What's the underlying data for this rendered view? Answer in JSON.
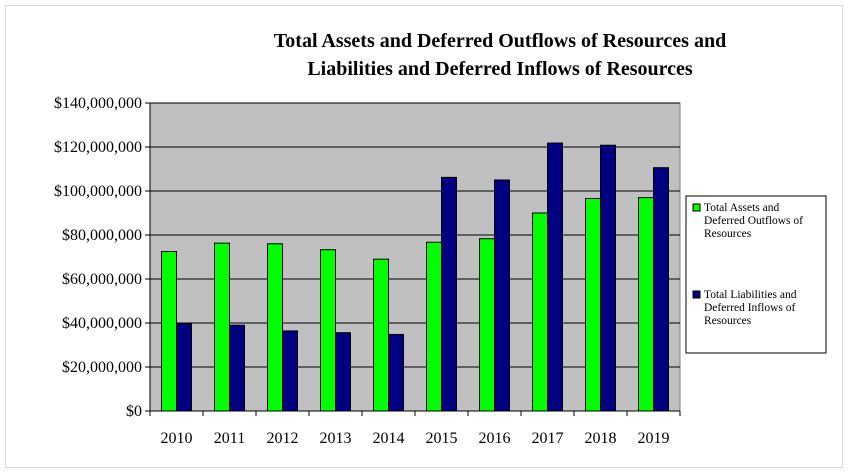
{
  "chart_data": {
    "type": "bar",
    "title_lines": [
      "Total Assets and Deferred Outflows of Resources and",
      "Liabilities and Deferred Inflows of Resources"
    ],
    "xlabel": "",
    "ylabel": "",
    "categories": [
      "2010",
      "2011",
      "2012",
      "2013",
      "2014",
      "2015",
      "2016",
      "2017",
      "2018",
      "2019"
    ],
    "y_ticks": [
      "$0",
      "$20,000,000",
      "$40,000,000",
      "$60,000,000",
      "$80,000,000",
      "$100,000,000",
      "$120,000,000",
      "$140,000,000"
    ],
    "ylim": [
      0,
      140000000
    ],
    "grid": true,
    "legend_position": "right",
    "series": [
      {
        "name": "Total Assets and Deferred Outflows of Resources",
        "legend_lines": [
          "Total Assets and",
          "Deferred Outflows of",
          "Resources"
        ],
        "color": "#00ff00",
        "values": [
          72500000,
          76300000,
          76000000,
          73300000,
          69000000,
          76700000,
          78300000,
          90000000,
          96600000,
          97000000
        ]
      },
      {
        "name": "Total Liabilities and Deferred Inflows of Resources",
        "legend_lines": [
          "Total Liabilities and",
          "Deferred Inflows of",
          "Resources"
        ],
        "color": "#000080",
        "values": [
          39700000,
          39000000,
          36400000,
          35600000,
          34800000,
          106200000,
          105000000,
          121800000,
          120800000,
          110600000
        ]
      }
    ],
    "plot_background": "#c0c0c0"
  }
}
